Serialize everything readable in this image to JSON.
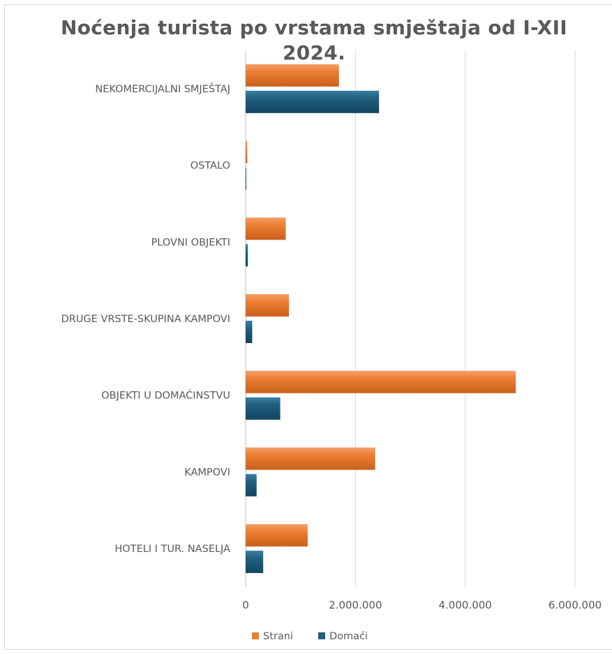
{
  "chart_data": {
    "type": "bar",
    "orientation": "horizontal",
    "title": "Noćenja turista po vrstama smještaja od I-XII 2024.",
    "categories": [
      "NEKOMERCIJALNI SMJEŠTAJ",
      "OSTALO",
      "PLOVNI OBJEKTI",
      "DRUGE VRSTE-SKUPINA KAMPOVI",
      "OBJEKTI U DOMAĆINSTVU",
      "KAMPOVI",
      "HOTELI I TUR. NASELJA"
    ],
    "series": [
      {
        "name": "Strani",
        "color": "#ED7D31",
        "values": [
          1700000,
          30000,
          730000,
          790000,
          4920000,
          2360000,
          1130000
        ]
      },
      {
        "name": "Domaći",
        "color": "#1F5F7F",
        "values": [
          2430000,
          10000,
          40000,
          120000,
          630000,
          200000,
          320000
        ]
      }
    ],
    "xlim": [
      0,
      6000000
    ],
    "ticks": [
      0,
      2000000,
      4000000,
      6000000
    ],
    "tick_labels": [
      "0",
      "2.000.000",
      "4.000.000",
      "6.000.000"
    ],
    "grid": true,
    "legend_position": "bottom"
  }
}
